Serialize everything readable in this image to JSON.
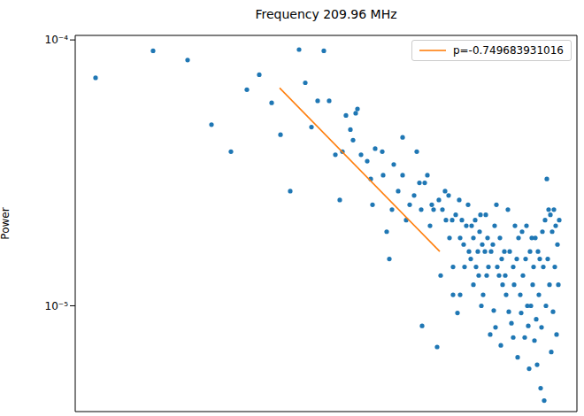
{
  "chart_data": {
    "type": "scatter",
    "title": "Frequency 209.96 MHz",
    "ylabel": "Power",
    "log": "y",
    "grid": false,
    "legend": "upper right",
    "tick_labels": "y",
    "xlim": [
      0,
      567
    ],
    "xticks": [],
    "ylim": [
      4e-06,
      0.000104
    ],
    "yticks": [
      {
        "value": 0.0001,
        "label": "10⁻⁴"
      },
      {
        "value": 1e-05,
        "label": "10⁻⁵"
      }
    ],
    "series": [
      {
        "type": "scatter",
        "color": "#1f77b4",
        "marker": "o",
        "x": [
          23,
          88,
          127,
          154,
          176,
          194,
          208,
          222,
          232,
          243,
          253,
          260,
          267,
          274,
          281,
          287,
          294,
          299,
          302,
          306,
          311,
          317,
          319,
          314,
          323,
          330,
          334,
          336,
          339,
          347,
          352,
          348,
          355,
          358,
          360,
          365,
          370,
          370,
          374,
          378,
          383,
          386,
          389,
          391,
          392,
          395,
          398,
          401,
          403,
          405,
          409,
          411,
          415,
          418,
          419,
          422,
          423,
          426,
          427,
          430,
          432,
          434,
          435,
          437,
          439,
          440,
          442,
          444,
          445,
          447,
          448,
          450,
          452,
          453,
          455,
          456,
          457,
          458,
          460,
          461,
          463,
          464,
          466,
          467,
          469,
          470,
          472,
          473,
          474,
          476,
          477,
          479,
          480,
          482,
          483,
          485,
          486,
          487,
          489,
          490,
          491,
          493,
          495,
          496,
          497,
          499,
          500,
          501,
          503,
          504,
          505,
          506,
          508,
          509,
          510,
          512,
          513,
          514,
          515,
          516,
          517,
          518,
          519,
          520,
          521,
          522,
          523,
          524,
          525,
          526,
          527,
          528,
          529,
          530,
          531,
          532,
          533,
          534,
          535,
          536,
          537,
          538,
          539,
          540,
          541,
          542,
          543,
          544,
          545,
          546,
          547,
          435,
          450,
          465,
          475,
          495,
          511,
          481,
          459,
          427,
          413
        ],
        "values": [
          7.2e-05,
          9.1e-05,
          8.4e-05,
          4.8e-05,
          3.8e-05,
          6.5e-05,
          7.4e-05,
          5.8e-05,
          4.4e-05,
          2.7e-05,
          9.2e-05,
          6.9e-05,
          4.7e-05,
          5.9e-05,
          9.1e-05,
          5.9e-05,
          3.7e-05,
          2.5e-05,
          3.8e-05,
          5.2e-05,
          4.6e-05,
          5.3e-05,
          5.5e-05,
          4.2e-05,
          3.7e-05,
          3.5e-05,
          3e-05,
          2.4e-05,
          3.9e-05,
          3.8e-05,
          1.9e-05,
          3.1e-05,
          1.5e-05,
          2.3e-05,
          3.4e-05,
          2.7e-05,
          4.3e-05,
          3.1e-05,
          2.1e-05,
          2.4e-05,
          2.6e-05,
          3.8e-05,
          2.9e-05,
          2.3e-05,
          8.4e-06,
          2.9e-05,
          3.1e-05,
          2e-05,
          2.4e-05,
          2.3e-05,
          7e-06,
          2.5e-05,
          2.3e-05,
          2.7e-05,
          2.1e-05,
          2.6e-05,
          1.8e-05,
          2.1e-05,
          1.4e-05,
          2.2e-05,
          9.4e-06,
          2.5e-05,
          1.8e-05,
          2.1e-05,
          1.7e-05,
          1.4e-05,
          2e-05,
          2.4e-05,
          1.6e-05,
          1.5e-05,
          2e-05,
          1.8e-05,
          2.1e-05,
          1.4e-05,
          1.6e-05,
          1.3e-05,
          1.9e-05,
          2.2e-05,
          1.7e-05,
          1.1e-05,
          1.6e-05,
          2.2e-05,
          1.8e-05,
          1.4e-05,
          7.8e-06,
          1.6e-05,
          1.7e-05,
          9.6e-06,
          2e-05,
          2.4e-05,
          1.4e-05,
          1.3e-05,
          1.8e-05,
          1.5e-05,
          1.2e-05,
          1.6e-05,
          1.3e-05,
          1.1e-05,
          2.3e-05,
          9.5e-06,
          1.6e-05,
          8.6e-06,
          1.4e-05,
          1.2e-05,
          2e-05,
          1.5e-05,
          6.4e-06,
          1.8e-05,
          1.1e-05,
          9.4e-06,
          1.9e-05,
          1.3e-05,
          7.6e-06,
          1.5e-05,
          2e-05,
          8.4e-06,
          5.8e-06,
          1.6e-05,
          1e-05,
          1.8e-05,
          1.2e-05,
          1.4e-05,
          7.4e-06,
          1.8e-05,
          8.9e-06,
          6e-06,
          1.6e-05,
          1.1e-05,
          1.5e-05,
          4.9e-06,
          8.3e-06,
          1.9e-05,
          1.4e-05,
          4.4e-06,
          2.1e-05,
          1e-05,
          3e-05,
          1.5e-05,
          2.3e-05,
          1.2e-05,
          2.2e-05,
          6.7e-06,
          1.9e-05,
          9.5e-06,
          2.3e-05,
          1.4e-05,
          2e-05,
          7.8e-06,
          1.7e-05,
          1.2e-05,
          2.1e-05,
          1.1e-05,
          1.2e-05,
          1.3e-05,
          8.3e-06,
          7.6e-06,
          1e-05,
          7.1e-06,
          1e-05,
          1.1e-05,
          1.3e-05
        ]
      },
      {
        "name": "p=-0.749683931016",
        "type": "line",
        "color": "#ff7f0e",
        "line_style": "solid",
        "x": [
          231,
          412
        ],
        "values": [
          6.6e-05,
          1.6e-05
        ]
      }
    ]
  }
}
